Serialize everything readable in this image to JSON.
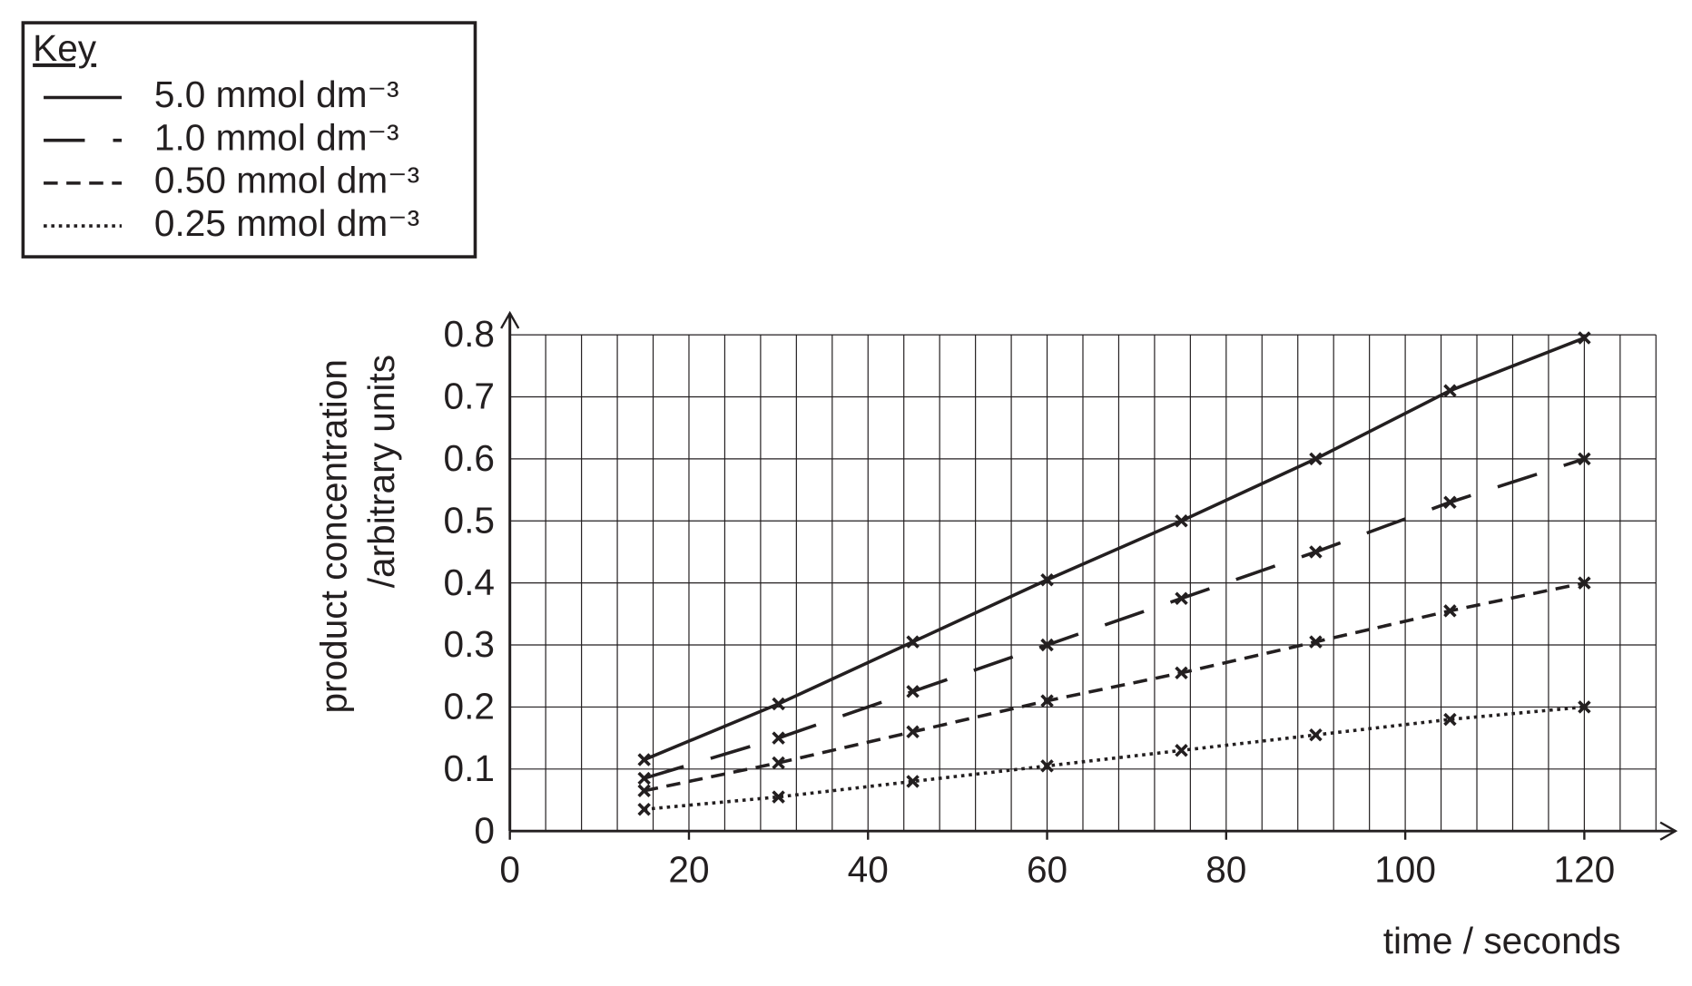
{
  "chart_data": {
    "type": "line",
    "legend_title": "Key",
    "xlabel": "time / seconds",
    "ylabel": [
      "product concentration",
      "/arbitrary units"
    ],
    "x": [
      15,
      30,
      45,
      60,
      75,
      90,
      105,
      120
    ],
    "series": [
      {
        "name": "5.0 mmol dm⁻³",
        "color": "#231f20",
        "dash": "solid",
        "values": [
          0.115,
          0.205,
          0.305,
          0.405,
          0.5,
          0.6,
          0.71,
          0.795
        ]
      },
      {
        "name": "1.0 mmol dm⁻³",
        "color": "#231f20",
        "dash": "long-dash",
        "values": [
          0.085,
          0.15,
          0.225,
          0.3,
          0.375,
          0.45,
          0.53,
          0.6
        ]
      },
      {
        "name": "0.50 mmol dm⁻³",
        "color": "#231f20",
        "dash": "dash",
        "values": [
          0.065,
          0.11,
          0.16,
          0.21,
          0.255,
          0.305,
          0.355,
          0.4
        ]
      },
      {
        "name": "0.25 mmol dm⁻³",
        "color": "#231f20",
        "dash": "dot",
        "values": [
          0.035,
          0.055,
          0.08,
          0.105,
          0.13,
          0.155,
          0.18,
          0.2
        ]
      }
    ],
    "xlim": [
      0,
      128
    ],
    "ylim": [
      0,
      0.8
    ],
    "xticks": [
      0,
      20,
      40,
      60,
      80,
      100,
      120
    ],
    "yticks": [
      0,
      0.1,
      0.2,
      0.3,
      0.4,
      0.5,
      0.6,
      0.7,
      0.8
    ],
    "xminorticks": [
      0,
      4,
      8,
      12,
      16,
      20,
      24,
      28,
      32,
      36,
      40,
      44,
      48,
      52,
      56,
      60,
      64,
      68,
      72,
      76,
      80,
      84,
      88,
      92,
      96,
      100,
      104,
      108,
      112,
      116,
      120,
      124,
      128
    ],
    "grid": true,
    "marker": "x"
  }
}
